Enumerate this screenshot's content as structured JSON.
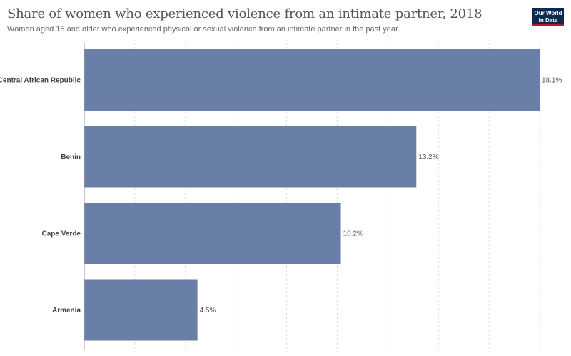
{
  "header": {
    "title": "Share of women who experienced violence from an intimate partner, 2018",
    "subtitle": "Women aged 15 and older who experienced physical or sexual violence from an intimate partner in the past year."
  },
  "logo": {
    "line1": "Our World",
    "line2": "in Data"
  },
  "colors": {
    "bar": "#6a7fa8",
    "grid": "#dddddd",
    "axis": "#999999"
  },
  "chart_data": {
    "type": "bar",
    "orientation": "horizontal",
    "categories": [
      "Central African Republic",
      "Benin",
      "Cape Verde",
      "Armenia"
    ],
    "values": [
      18.1,
      13.2,
      10.2,
      4.5
    ],
    "value_labels": [
      "18.1%",
      "13.2%",
      "10.2%",
      "4.5%"
    ],
    "title": "Share of women who experienced violence from an intimate partner, 2018",
    "xlim": [
      0,
      18.1
    ],
    "grid": true
  }
}
